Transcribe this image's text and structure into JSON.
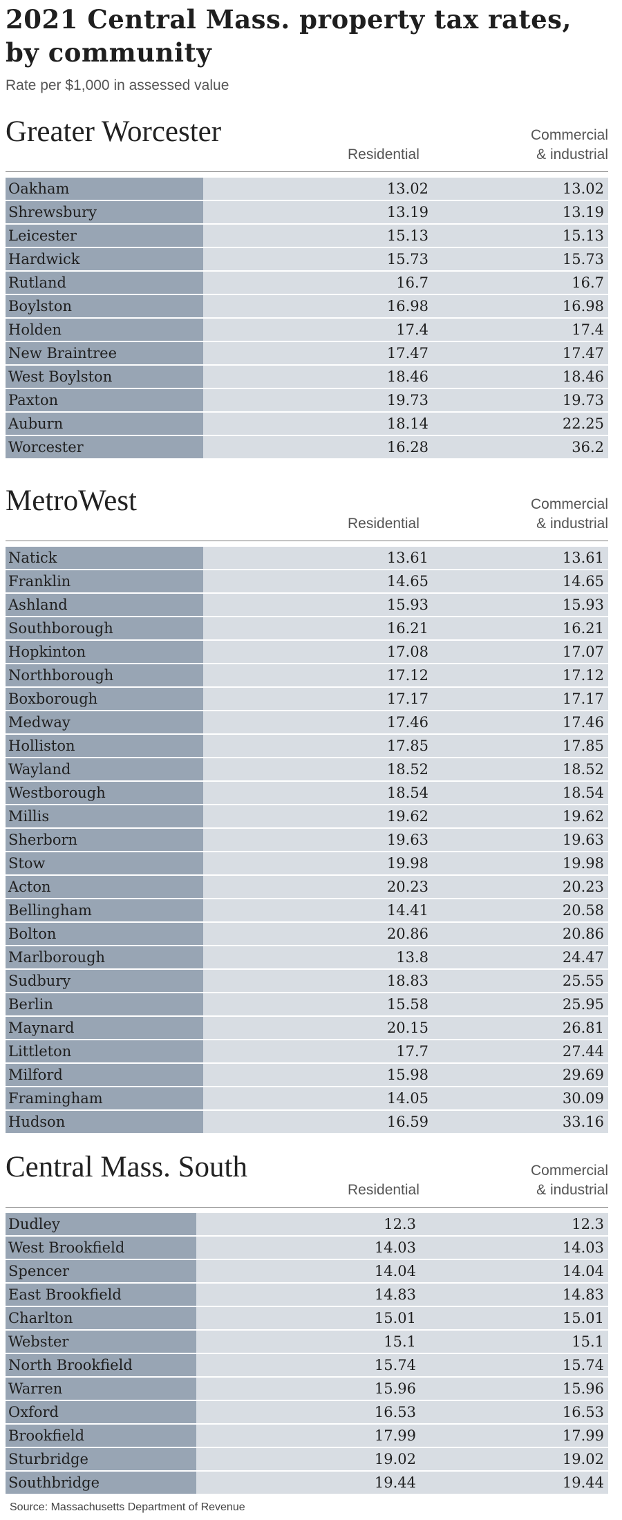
{
  "title": "2021 Central Mass. property tax rates, by community",
  "subtitle": "Rate per $1,000 in assessed value",
  "source": "Source: Massachusetts Department of Revenue",
  "sections": [
    {
      "name": "Greater Worcester",
      "col_res": "Residential",
      "col_com": [
        "Commercial",
        "& industrial"
      ],
      "rows": [
        {
          "town": "Oakham",
          "res": "13.02",
          "com": "13.02"
        },
        {
          "town": "Shrewsbury",
          "res": "13.19",
          "com": "13.19"
        },
        {
          "town": "Leicester",
          "res": "15.13",
          "com": "15.13"
        },
        {
          "town": "Hardwick",
          "res": "15.73",
          "com": "15.73"
        },
        {
          "town": "Rutland",
          "res": "16.7",
          "com": "16.7"
        },
        {
          "town": "Boylston",
          "res": "16.98",
          "com": "16.98"
        },
        {
          "town": "Holden",
          "res": "17.4",
          "com": "17.4"
        },
        {
          "town": "New Braintree",
          "res": "17.47",
          "com": "17.47"
        },
        {
          "town": "West Boylston",
          "res": "18.46",
          "com": "18.46"
        },
        {
          "town": "Paxton",
          "res": "19.73",
          "com": "19.73"
        },
        {
          "town": "Auburn",
          "res": "18.14",
          "com": "22.25"
        },
        {
          "town": "Worcester",
          "res": "16.28",
          "com": "36.2"
        }
      ]
    },
    {
      "name": "MetroWest",
      "col_res": "Residential",
      "col_com": [
        "Commercial",
        "& industrial"
      ],
      "rows": [
        {
          "town": "Natick",
          "res": "13.61",
          "com": "13.61"
        },
        {
          "town": "Franklin",
          "res": "14.65",
          "com": "14.65"
        },
        {
          "town": "Ashland",
          "res": "15.93",
          "com": "15.93"
        },
        {
          "town": "Southborough",
          "res": "16.21",
          "com": "16.21"
        },
        {
          "town": "Hopkinton",
          "res": "17.08",
          "com": "17.07"
        },
        {
          "town": "Northborough",
          "res": "17.12",
          "com": "17.12"
        },
        {
          "town": "Boxborough",
          "res": "17.17",
          "com": "17.17"
        },
        {
          "town": "Medway",
          "res": "17.46",
          "com": "17.46"
        },
        {
          "town": "Holliston",
          "res": "17.85",
          "com": "17.85"
        },
        {
          "town": "Wayland",
          "res": "18.52",
          "com": "18.52"
        },
        {
          "town": "Westborough",
          "res": "18.54",
          "com": "18.54"
        },
        {
          "town": "Millis",
          "res": "19.62",
          "com": "19.62"
        },
        {
          "town": "Sherborn",
          "res": "19.63",
          "com": "19.63"
        },
        {
          "town": "Stow",
          "res": "19.98",
          "com": "19.98"
        },
        {
          "town": "Acton",
          "res": "20.23",
          "com": "20.23"
        },
        {
          "town": "Bellingham",
          "res": "14.41",
          "com": "20.58"
        },
        {
          "town": "Bolton",
          "res": "20.86",
          "com": "20.86"
        },
        {
          "town": "Marlborough",
          "res": "13.8",
          "com": "24.47"
        },
        {
          "town": "Sudbury",
          "res": "18.83",
          "com": "25.55"
        },
        {
          "town": "Berlin",
          "res": "15.58",
          "com": "25.95"
        },
        {
          "town": "Maynard",
          "res": "20.15",
          "com": "26.81"
        },
        {
          "town": "Littleton",
          "res": "17.7",
          "com": "27.44"
        },
        {
          "town": "Milford",
          "res": "15.98",
          "com": "29.69"
        },
        {
          "town": "Framingham",
          "res": "14.05",
          "com": "30.09"
        },
        {
          "town": "Hudson",
          "res": "16.59",
          "com": "33.16"
        }
      ]
    },
    {
      "name": "Central Mass. South",
      "col_res": "Residential",
      "col_com": [
        "Commercial",
        "& industrial"
      ],
      "rows": [
        {
          "town": "Dudley",
          "res": "12.3",
          "com": "12.3"
        },
        {
          "town": "West Brookfield",
          "res": "14.03",
          "com": "14.03"
        },
        {
          "town": "Spencer",
          "res": "14.04",
          "com": "14.04"
        },
        {
          "town": "East Brookfield",
          "res": "14.83",
          "com": "14.83"
        },
        {
          "town": "Charlton",
          "res": "15.01",
          "com": "15.01"
        },
        {
          "town": "Webster",
          "res": "15.1",
          "com": "15.1"
        },
        {
          "town": "North Brookfield",
          "res": "15.74",
          "com": "15.74"
        },
        {
          "town": "Warren",
          "res": "15.96",
          "com": "15.96"
        },
        {
          "town": "Oxford",
          "res": "16.53",
          "com": "16.53"
        },
        {
          "town": "Brookfield",
          "res": "17.99",
          "com": "17.99"
        },
        {
          "town": "Sturbridge",
          "res": "19.02",
          "com": "19.02"
        },
        {
          "town": "Southbridge",
          "res": "19.44",
          "com": "19.44"
        }
      ]
    }
  ]
}
